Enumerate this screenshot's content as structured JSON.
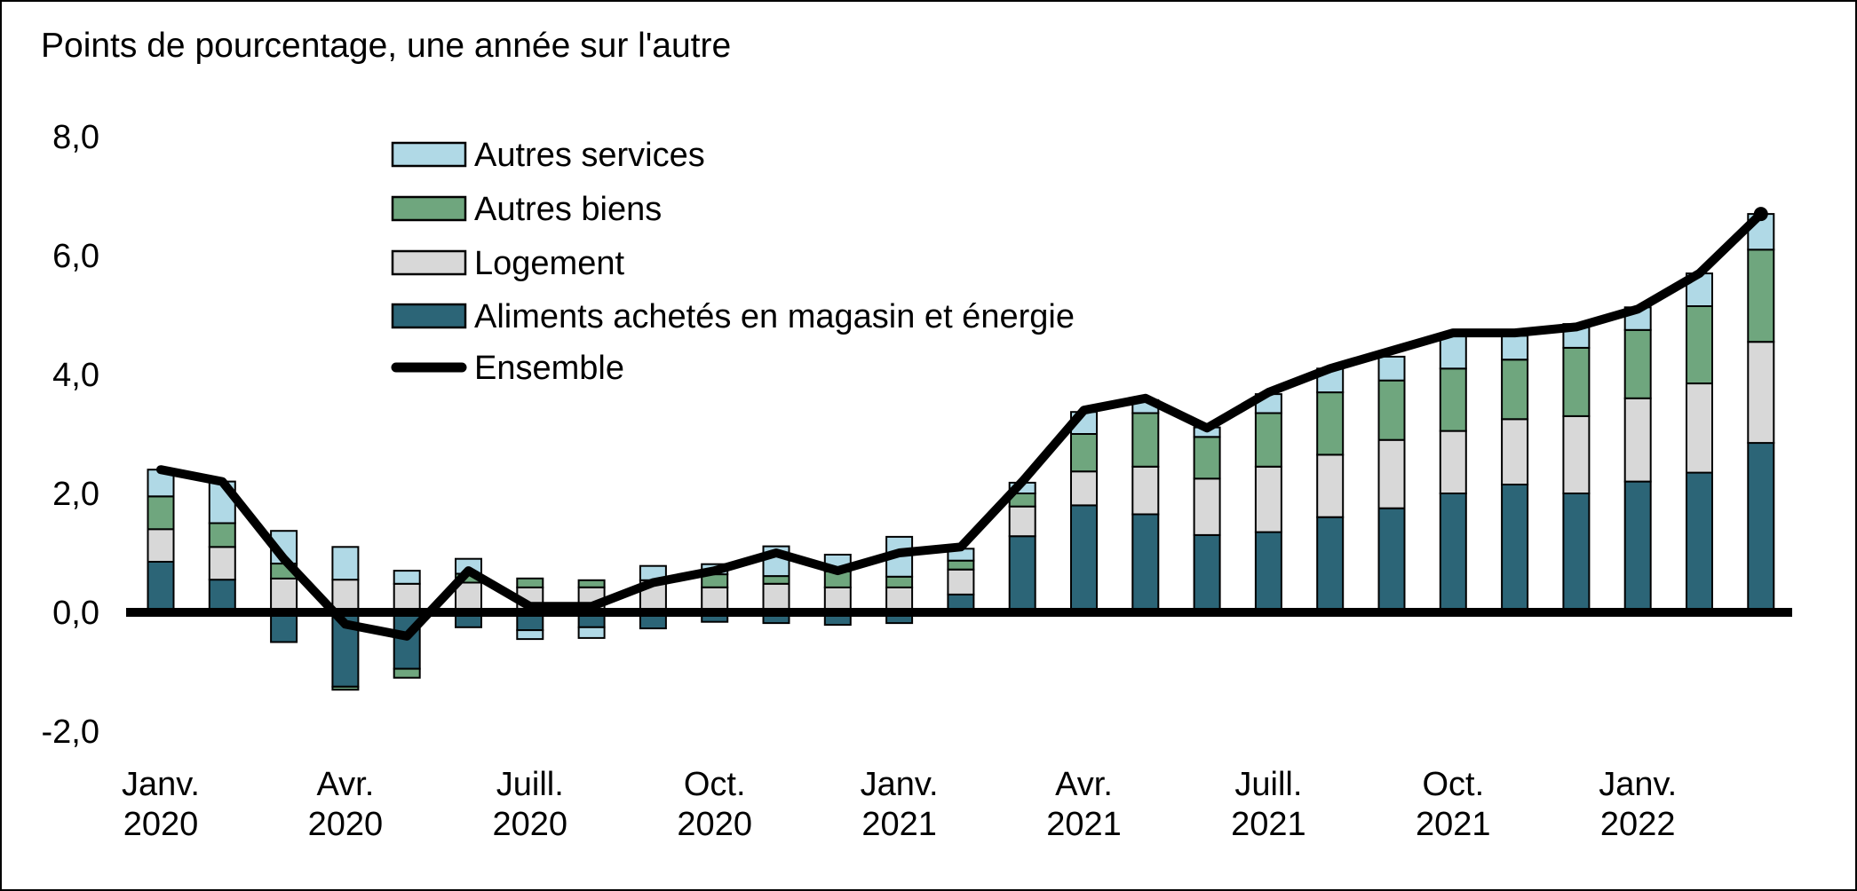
{
  "title": "Points de pourcentage, une année sur l'autre",
  "chart_data": {
    "type": "bar",
    "subtype": "stacked-bars-with-line",
    "title": "Points de pourcentage, une année sur l'autre",
    "ylabel": "Points de pourcentage, une année sur l'autre",
    "ylim": [
      -2.0,
      8.0
    ],
    "grid": false,
    "legend_position": "top-left-inside",
    "yticks": [
      {
        "value": 8,
        "label": "8,0"
      },
      {
        "value": 6,
        "label": "6,0"
      },
      {
        "value": 4,
        "label": "4,0"
      },
      {
        "value": 2,
        "label": "2,0"
      },
      {
        "value": 0,
        "label": "0,0"
      },
      {
        "value": -2,
        "label": "-2,0"
      }
    ],
    "xticks": [
      {
        "month_index": 0,
        "line1": "Janv.",
        "line2": "2020"
      },
      {
        "month_index": 3,
        "line1": "Avr.",
        "line2": "2020"
      },
      {
        "month_index": 6,
        "line1": "Juill.",
        "line2": "2020"
      },
      {
        "month_index": 9,
        "line1": "Oct.",
        "line2": "2020"
      },
      {
        "month_index": 12,
        "line1": "Janv.",
        "line2": "2021"
      },
      {
        "month_index": 15,
        "line1": "Avr.",
        "line2": "2021"
      },
      {
        "month_index": 18,
        "line1": "Juill.",
        "line2": "2021"
      },
      {
        "month_index": 21,
        "line1": "Oct.",
        "line2": "2021"
      },
      {
        "month_index": 24,
        "line1": "Janv.",
        "line2": "2022"
      }
    ],
    "categories": [
      "Janv. 2020",
      "Févr. 2020",
      "Mars 2020",
      "Avr. 2020",
      "Mai 2020",
      "Juin 2020",
      "Juill. 2020",
      "Août 2020",
      "Sept. 2020",
      "Oct. 2020",
      "Nov. 2020",
      "Déc. 2020",
      "Janv. 2021",
      "Févr. 2021",
      "Mars 2021",
      "Avr. 2021",
      "Mai 2021",
      "Juin 2021",
      "Juill. 2021",
      "Août 2021",
      "Sept. 2021",
      "Oct. 2021",
      "Nov. 2021",
      "Déc. 2021",
      "Janv. 2022",
      "Févr. 2022",
      "Mars 2022"
    ],
    "series": [
      {
        "name": "Autres services",
        "color": "#b0d9e6",
        "values": [
          0.45,
          0.7,
          0.55,
          0.55,
          0.22,
          0.25,
          -0.15,
          -0.18,
          0.24,
          0.17,
          0.5,
          0.28,
          0.67,
          0.2,
          0.18,
          0.37,
          0.22,
          0.16,
          0.32,
          0.4,
          0.4,
          0.55,
          0.4,
          0.4,
          0.38,
          0.55,
          0.6
        ]
      },
      {
        "name": "Autres biens",
        "color": "#6fa67e",
        "values": [
          0.55,
          0.4,
          0.25,
          -0.05,
          -0.15,
          0.15,
          0.15,
          0.12,
          0.0,
          0.22,
          0.13,
          0.27,
          0.18,
          0.15,
          0.22,
          0.63,
          0.9,
          0.7,
          0.9,
          1.05,
          1.0,
          1.05,
          1.0,
          1.15,
          1.15,
          1.3,
          1.55
        ]
      },
      {
        "name": "Logement",
        "color": "#d8d8d8",
        "values": [
          0.55,
          0.55,
          0.57,
          0.55,
          0.48,
          0.5,
          0.42,
          0.42,
          0.54,
          0.42,
          0.48,
          0.42,
          0.42,
          0.42,
          0.5,
          0.57,
          0.8,
          0.95,
          1.1,
          1.05,
          1.15,
          1.05,
          1.1,
          1.3,
          1.4,
          1.5,
          1.7
        ]
      },
      {
        "name": "Aliments achetés en magasin et énergie",
        "color": "#2c6577",
        "values": [
          0.85,
          0.55,
          -0.5,
          -1.25,
          -0.95,
          -0.25,
          -0.3,
          -0.25,
          -0.27,
          -0.16,
          -0.18,
          -0.21,
          -0.18,
          0.3,
          1.28,
          1.8,
          1.65,
          1.3,
          1.35,
          1.6,
          1.75,
          2.0,
          2.15,
          2.0,
          2.2,
          2.35,
          2.85
        ]
      }
    ],
    "line_series": {
      "name": "Ensemble",
      "color": "#000000",
      "values": [
        2.4,
        2.2,
        0.9,
        -0.2,
        -0.4,
        0.7,
        0.1,
        0.1,
        0.5,
        0.7,
        1.0,
        0.7,
        1.0,
        1.1,
        2.2,
        3.4,
        3.6,
        3.1,
        3.7,
        4.1,
        4.4,
        4.7,
        4.7,
        4.8,
        5.1,
        5.7,
        6.7
      ]
    }
  },
  "legend": {
    "items": [
      {
        "label": "Autres services",
        "swatch": "box",
        "color": "#b0d9e6"
      },
      {
        "label": "Autres biens",
        "swatch": "box",
        "color": "#6fa67e"
      },
      {
        "label": "Logement",
        "swatch": "box",
        "color": "#d8d8d8"
      },
      {
        "label": "Aliments achetés en magasin et énergie",
        "swatch": "box",
        "color": "#2c6577"
      },
      {
        "label": "Ensemble",
        "swatch": "line",
        "color": "#000000"
      }
    ]
  }
}
